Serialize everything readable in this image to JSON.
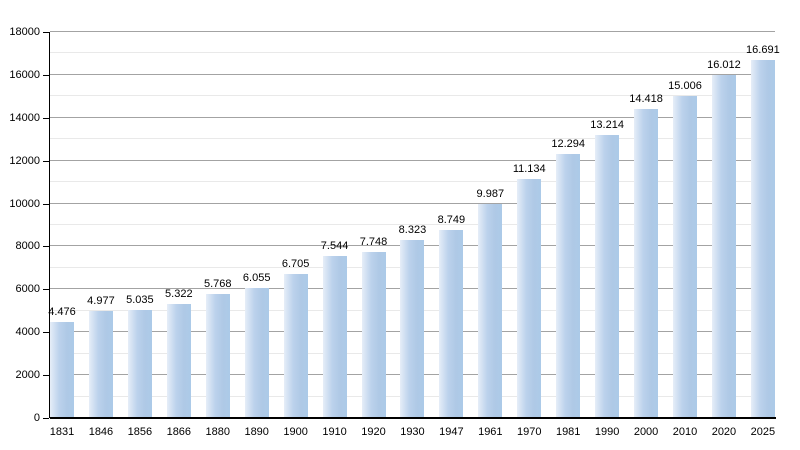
{
  "chart_data": {
    "type": "bar",
    "title": "",
    "xlabel": "",
    "ylabel": "",
    "categories": [
      "1831",
      "1846",
      "1856",
      "1866",
      "1880",
      "1890",
      "1900",
      "1910",
      "1920",
      "1930",
      "1947",
      "1961",
      "1970",
      "1981",
      "1990",
      "2000",
      "2010",
      "2020",
      "2025"
    ],
    "values": [
      4476,
      4977,
      5035,
      5322,
      5768,
      6055,
      6705,
      7544,
      7748,
      8323,
      8749,
      9987,
      11134,
      12294,
      13214,
      14418,
      15006,
      16012,
      16691
    ],
    "value_labels": [
      "4.476",
      "4.977",
      "5.035",
      "5.322",
      "5.768",
      "6.055",
      "6.705",
      "7.544",
      "7.748",
      "8.323",
      "8.749",
      "9.987",
      "11.134",
      "12.294",
      "13.214",
      "14.418",
      "15.006",
      "16.012",
      "16.691"
    ],
    "ylim": [
      0,
      18000
    ],
    "ytick_interval_major": 2000,
    "ytick_interval_minor": 1000,
    "ytick_labels": [
      "0",
      "2000",
      "4000",
      "6000",
      "8000",
      "10000",
      "12000",
      "14000",
      "16000",
      "18000"
    ],
    "grid": "on",
    "legend_position": "none",
    "colors": {
      "bar_fill": "#afc9e6",
      "bar_fill_light_edge": "#e6eef8",
      "gridline_major": "#a3a3a3",
      "gridline_minor": "#e9e9e9",
      "axis": "#000000",
      "text": "#000000",
      "background": "#ffffff"
    }
  }
}
